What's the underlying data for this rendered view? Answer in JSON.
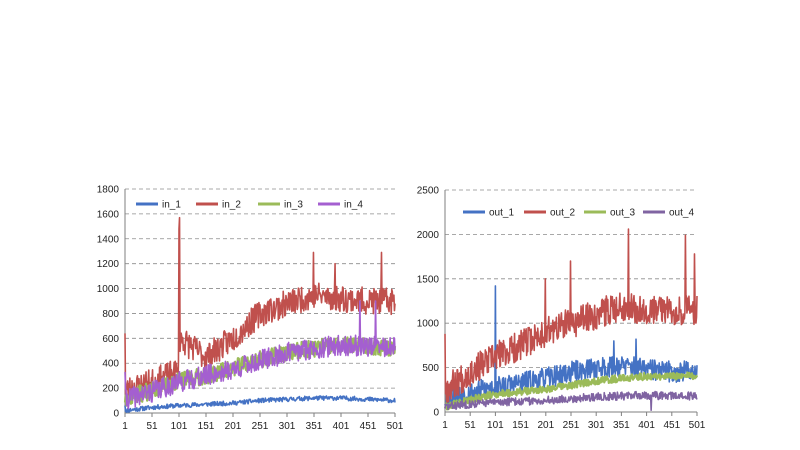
{
  "chart_data": [
    {
      "type": "line",
      "title": "",
      "xlabel": "",
      "ylabel": "",
      "xlim": [
        1,
        501
      ],
      "ylim": [
        0,
        1800
      ],
      "x_ticks": [
        "1",
        "51",
        "101",
        "151",
        "201",
        "251",
        "301",
        "351",
        "401",
        "451",
        "501"
      ],
      "y_ticks": [
        "0",
        "200",
        "400",
        "600",
        "800",
        "1000",
        "1200",
        "1400",
        "1600",
        "1800"
      ],
      "grid": "horizontal dashed",
      "legend_position": "top",
      "series": [
        {
          "name": "in_1",
          "color": "#4472C4",
          "baseline": [
            [
              1,
              20
            ],
            [
              51,
              45
            ],
            [
              101,
              60
            ],
            [
              151,
              70
            ],
            [
              201,
              80
            ],
            [
              251,
              100
            ],
            [
              301,
              110
            ],
            [
              351,
              120
            ],
            [
              401,
              120
            ],
            [
              451,
              110
            ],
            [
              501,
              100
            ]
          ],
          "noise": 18,
          "spikes": [
            [
              1,
              60
            ]
          ],
          "seed": 11
        },
        {
          "name": "in_2",
          "color": "#C0504D",
          "baseline": [
            [
              1,
              180
            ],
            [
              51,
              250
            ],
            [
              100,
              330
            ],
            [
              101,
              1560
            ],
            [
              102,
              600
            ],
            [
              151,
              450
            ],
            [
              201,
              600
            ],
            [
              251,
              800
            ],
            [
              301,
              880
            ],
            [
              351,
              950
            ],
            [
              401,
              920
            ],
            [
              451,
              900
            ],
            [
              501,
              900
            ]
          ],
          "noise": 110,
          "spikes": [
            [
              1,
              640
            ],
            [
              102,
              1570
            ],
            [
              350,
              1290
            ],
            [
              476,
              1290
            ],
            [
              390,
              1200
            ]
          ],
          "seed": 23
        },
        {
          "name": "in_3",
          "color": "#9BBB59",
          "baseline": [
            [
              1,
              120
            ],
            [
              51,
              180
            ],
            [
              101,
              260
            ],
            [
              151,
              300
            ],
            [
              201,
              360
            ],
            [
              251,
              430
            ],
            [
              301,
              480
            ],
            [
              351,
              520
            ],
            [
              401,
              540
            ],
            [
              451,
              540
            ],
            [
              501,
              520
            ]
          ],
          "noise": 70,
          "spikes": [],
          "seed": 37
        },
        {
          "name": "in_4",
          "color": "#A45FD0",
          "baseline": [
            [
              1,
              110
            ],
            [
              51,
              170
            ],
            [
              101,
              250
            ],
            [
              151,
              300
            ],
            [
              201,
              350
            ],
            [
              251,
              420
            ],
            [
              301,
              480
            ],
            [
              351,
              520
            ],
            [
              401,
              540
            ],
            [
              451,
              540
            ],
            [
              501,
              520
            ]
          ],
          "noise": 85,
          "spikes": [
            [
              1,
              330
            ],
            [
              436,
              900
            ],
            [
              465,
              900
            ]
          ],
          "seed": 41
        }
      ]
    },
    {
      "type": "line",
      "title": "",
      "xlabel": "",
      "ylabel": "",
      "xlim": [
        1,
        501
      ],
      "ylim": [
        0,
        2500
      ],
      "x_ticks": [
        "1",
        "51",
        "101",
        "151",
        "201",
        "251",
        "301",
        "351",
        "401",
        "451",
        "501"
      ],
      "y_ticks": [
        "0",
        "500",
        "1000",
        "1500",
        "2000",
        "2500"
      ],
      "grid": "horizontal dashed",
      "legend_position": "top",
      "series": [
        {
          "name": "out_1",
          "color": "#4472C4",
          "baseline": [
            [
              1,
              150
            ],
            [
              51,
              220
            ],
            [
              101,
              280
            ],
            [
              151,
              330
            ],
            [
              201,
              380
            ],
            [
              251,
              450
            ],
            [
              301,
              500
            ],
            [
              351,
              520
            ],
            [
              401,
              480
            ],
            [
              451,
              450
            ],
            [
              501,
              470
            ]
          ],
          "noise": 120,
          "spikes": [
            [
              101,
              1420
            ],
            [
              336,
              800
            ],
            [
              380,
              820
            ]
          ],
          "seed": 53
        },
        {
          "name": "out_2",
          "color": "#C0504D",
          "baseline": [
            [
              1,
              250
            ],
            [
              51,
              450
            ],
            [
              101,
              620
            ],
            [
              151,
              750
            ],
            [
              201,
              900
            ],
            [
              251,
              1000
            ],
            [
              301,
              1100
            ],
            [
              351,
              1200
            ],
            [
              401,
              1150
            ],
            [
              451,
              1150
            ],
            [
              501,
              1150
            ]
          ],
          "noise": 170,
          "spikes": [
            [
              1,
              880
            ],
            [
              365,
              2060
            ],
            [
              478,
              1990
            ],
            [
              496,
              1780
            ],
            [
              200,
              1500
            ],
            [
              250,
              1700
            ]
          ],
          "seed": 67
        },
        {
          "name": "out_3",
          "color": "#9BBB59",
          "baseline": [
            [
              1,
              60
            ],
            [
              51,
              140
            ],
            [
              101,
              200
            ],
            [
              151,
              230
            ],
            [
              201,
              260
            ],
            [
              251,
              300
            ],
            [
              301,
              350
            ],
            [
              351,
              380
            ],
            [
              401,
              400
            ],
            [
              451,
              400
            ],
            [
              501,
              410
            ]
          ],
          "noise": 40,
          "spikes": [],
          "seed": 79
        },
        {
          "name": "out_4",
          "color": "#8064A2",
          "baseline": [
            [
              1,
              60
            ],
            [
              51,
              90
            ],
            [
              101,
              110
            ],
            [
              151,
              120
            ],
            [
              201,
              130
            ],
            [
              251,
              150
            ],
            [
              301,
              170
            ],
            [
              351,
              180
            ],
            [
              401,
              190
            ],
            [
              451,
              180
            ],
            [
              501,
              180
            ]
          ],
          "noise": 45,
          "spikes": [
            [
              410,
              20
            ]
          ],
          "seed": 83
        }
      ]
    }
  ]
}
